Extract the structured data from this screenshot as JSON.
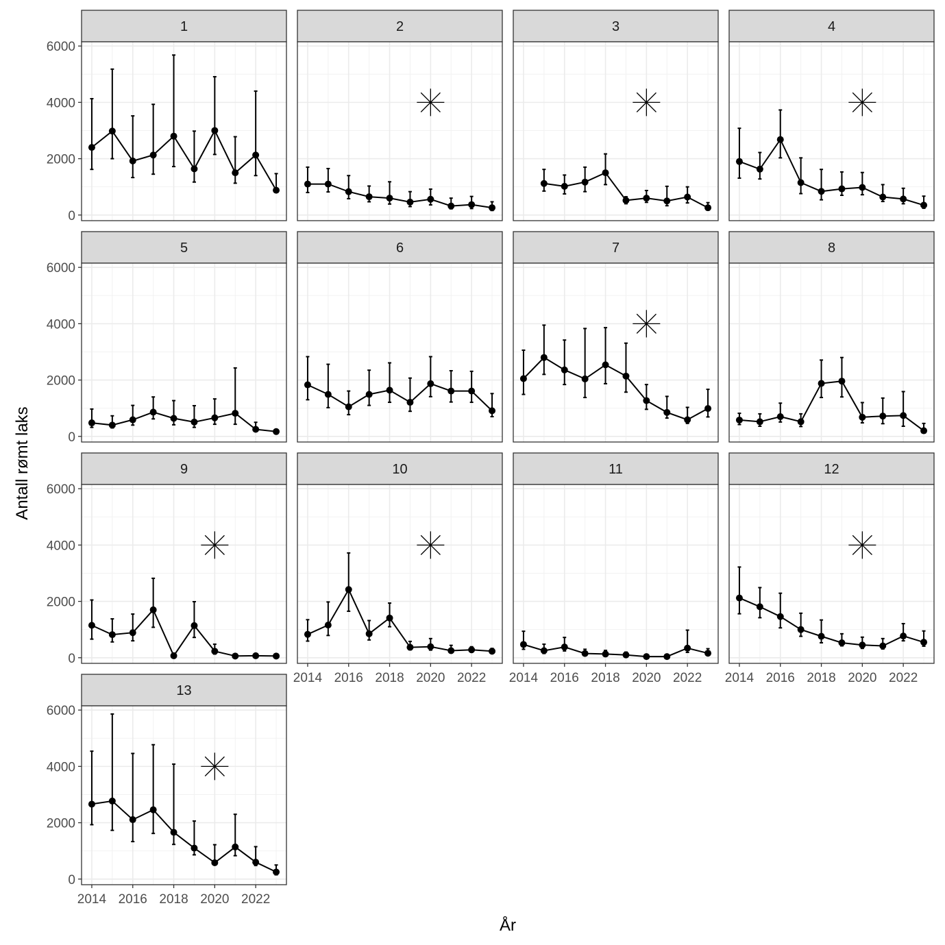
{
  "chart_data": {
    "type": "line",
    "xlabel": "År",
    "ylabel": "Antall rømt laks",
    "x": [
      2014,
      2015,
      2016,
      2017,
      2018,
      2019,
      2020,
      2021,
      2022,
      2023
    ],
    "x_ticks": [
      2014,
      2016,
      2018,
      2020,
      2022
    ],
    "x_tick_labels": [
      "2014",
      "2016",
      "2018",
      "2020",
      "2022"
    ],
    "xlim": [
      2013.5,
      2023.5
    ],
    "y_ticks": [
      0,
      2000,
      4000,
      6000
    ],
    "y_tick_labels": [
      "0",
      "2000",
      "4000",
      "6000"
    ],
    "ylim": [
      -200,
      6150
    ],
    "marker": {
      "symbol": "asterisk",
      "x": 2020,
      "y": 4000
    },
    "panels": [
      {
        "label": "1",
        "marker": false,
        "values": [
          2400,
          2980,
          1920,
          2130,
          2800,
          1640,
          3000,
          1500,
          2130,
          880
        ],
        "lower": [
          1620,
          2000,
          1330,
          1450,
          1720,
          1170,
          2150,
          1130,
          1400,
          800
        ],
        "upper": [
          4130,
          5180,
          3520,
          3930,
          5680,
          2980,
          4910,
          2780,
          4400,
          1470
        ]
      },
      {
        "label": "2",
        "marker": true,
        "values": [
          1100,
          1100,
          830,
          650,
          600,
          460,
          560,
          320,
          370,
          260
        ],
        "lower": [
          800,
          820,
          580,
          470,
          390,
          300,
          360,
          220,
          230,
          160
        ],
        "upper": [
          1700,
          1650,
          1400,
          1030,
          1180,
          830,
          920,
          600,
          660,
          470
        ]
      },
      {
        "label": "3",
        "marker": true,
        "values": [
          null,
          1120,
          1020,
          1170,
          1500,
          520,
          600,
          500,
          640,
          260
        ],
        "lower": [
          null,
          850,
          750,
          830,
          1080,
          400,
          450,
          330,
          430,
          170
        ],
        "upper": [
          null,
          1620,
          1420,
          1700,
          2170,
          650,
          870,
          1020,
          1000,
          440
        ]
      },
      {
        "label": "4",
        "marker": true,
        "values": [
          1900,
          1630,
          2680,
          1150,
          840,
          930,
          980,
          640,
          570,
          350
        ],
        "lower": [
          1310,
          1280,
          2030,
          760,
          540,
          700,
          720,
          480,
          400,
          240
        ],
        "upper": [
          3080,
          2220,
          3730,
          2030,
          1620,
          1530,
          1510,
          1080,
          950,
          670
        ]
      },
      {
        "label": "5",
        "marker": false,
        "values": [
          480,
          400,
          590,
          860,
          640,
          510,
          660,
          820,
          250,
          170
        ],
        "lower": [
          320,
          300,
          400,
          620,
          410,
          320,
          430,
          430,
          190,
          100
        ],
        "upper": [
          970,
          730,
          1100,
          1400,
          1270,
          1090,
          1330,
          2430,
          500,
          220
        ]
      },
      {
        "label": "6",
        "marker": false,
        "values": [
          1830,
          1490,
          1050,
          1490,
          1640,
          1210,
          1870,
          1610,
          1610,
          910
        ],
        "lower": [
          1300,
          1020,
          770,
          1100,
          1210,
          890,
          1410,
          1220,
          1210,
          700
        ],
        "upper": [
          2830,
          2560,
          1610,
          2350,
          2610,
          2070,
          2830,
          2330,
          2310,
          1520
        ]
      },
      {
        "label": "7",
        "marker": true,
        "values": [
          2050,
          2800,
          2360,
          2040,
          2540,
          2140,
          1270,
          850,
          590,
          990
        ],
        "lower": [
          1490,
          2200,
          1840,
          1380,
          1870,
          1570,
          960,
          650,
          460,
          690
        ],
        "upper": [
          3060,
          3950,
          3420,
          3830,
          3860,
          3310,
          1840,
          1420,
          1030,
          1670
        ]
      },
      {
        "label": "8",
        "marker": false,
        "values": [
          580,
          520,
          700,
          520,
          1880,
          1960,
          680,
          720,
          740,
          200
        ],
        "lower": [
          420,
          360,
          510,
          350,
          1380,
          1400,
          480,
          450,
          360,
          120
        ],
        "upper": [
          820,
          800,
          1180,
          800,
          2710,
          2800,
          1200,
          1360,
          1590,
          460
        ]
      },
      {
        "label": "9",
        "marker": true,
        "values": [
          1150,
          820,
          890,
          1700,
          70,
          1140,
          230,
          60,
          70,
          60
        ],
        "lower": [
          660,
          560,
          600,
          1080,
          40,
          720,
          130,
          30,
          40,
          30
        ],
        "upper": [
          2050,
          1380,
          1550,
          2820,
          120,
          1990,
          480,
          100,
          100,
          100
        ]
      },
      {
        "label": "10",
        "marker": true,
        "values": [
          830,
          1160,
          2420,
          850,
          1410,
          370,
          390,
          250,
          280,
          230
        ],
        "lower": [
          590,
          790,
          1650,
          630,
          1100,
          280,
          270,
          170,
          200,
          150
        ],
        "upper": [
          1350,
          1980,
          3720,
          1320,
          1940,
          580,
          680,
          440,
          390,
          330
        ]
      },
      {
        "label": "11",
        "marker": false,
        "values": [
          470,
          250,
          380,
          150,
          130,
          100,
          40,
          40,
          340,
          160
        ],
        "lower": [
          300,
          150,
          240,
          90,
          70,
          50,
          20,
          20,
          190,
          80
        ],
        "upper": [
          940,
          480,
          720,
          300,
          260,
          200,
          70,
          70,
          980,
          320
        ]
      },
      {
        "label": "12",
        "marker": true,
        "values": [
          2120,
          1810,
          1460,
          1000,
          760,
          530,
          450,
          420,
          770,
          550
        ],
        "lower": [
          1560,
          1420,
          1060,
          760,
          530,
          420,
          330,
          310,
          600,
          410
        ],
        "upper": [
          3220,
          2490,
          2290,
          1580,
          1340,
          850,
          730,
          680,
          1210,
          950
        ]
      },
      {
        "label": "13",
        "marker": true,
        "values": [
          2660,
          2770,
          2110,
          2460,
          1660,
          1100,
          580,
          1140,
          600,
          250
        ],
        "lower": [
          1930,
          1730,
          1330,
          1620,
          1230,
          860,
          510,
          830,
          480,
          150
        ],
        "upper": [
          4540,
          5860,
          4460,
          4770,
          4080,
          2060,
          1220,
          2300,
          1150,
          500
        ]
      }
    ]
  }
}
